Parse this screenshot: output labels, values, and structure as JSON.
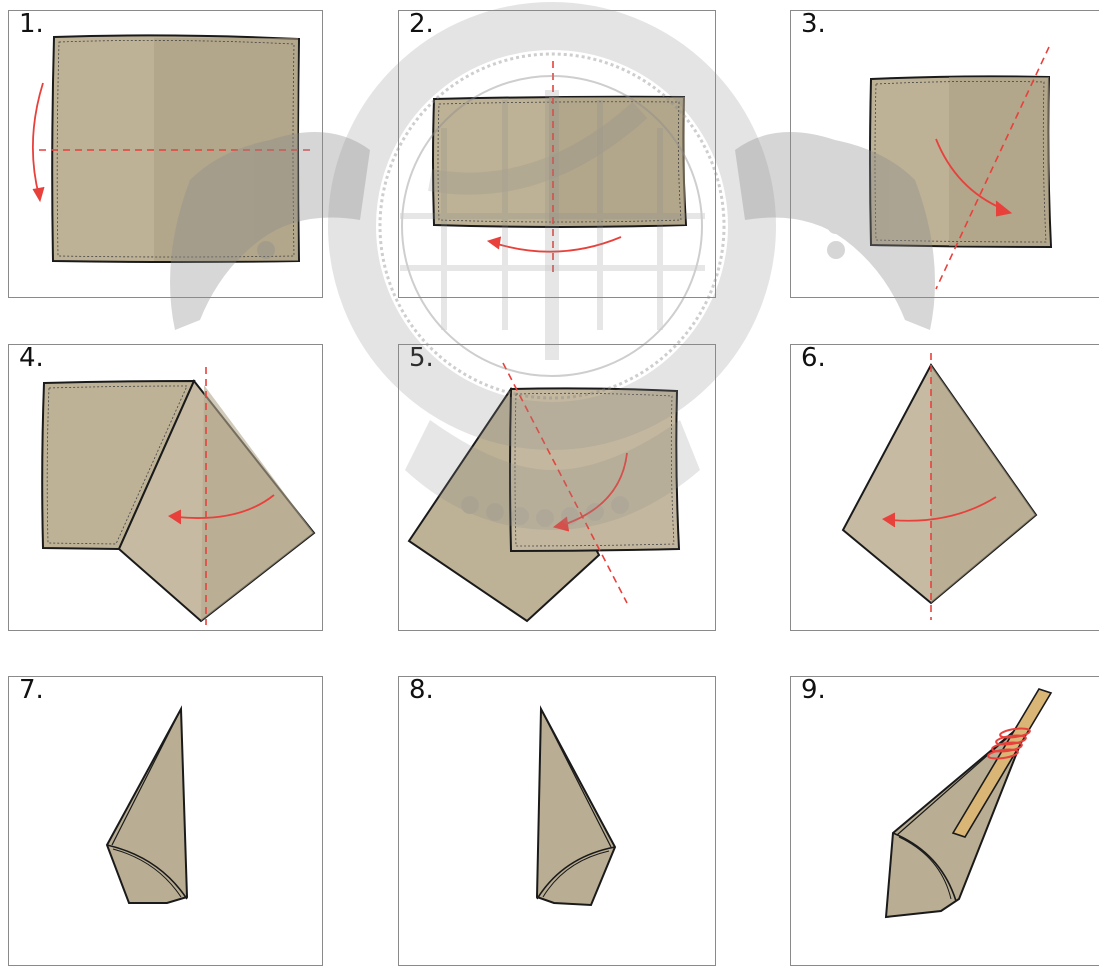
{
  "steps": [
    {
      "label": "1."
    },
    {
      "label": "2."
    },
    {
      "label": "3."
    },
    {
      "label": "4."
    },
    {
      "label": "5."
    },
    {
      "label": "6."
    },
    {
      "label": "7."
    },
    {
      "label": "8."
    },
    {
      "label": "9."
    }
  ],
  "colors": {
    "paper": "#b9ad93",
    "paper_light": "#c9bea6",
    "paper_dark": "#a89c82",
    "outline": "#1a1a1a",
    "fold_line": "#e8413c",
    "arrow": "#e8413c",
    "stick": "#d9b676",
    "thread": "#e8413c",
    "watermark": "#8c8c8c"
  }
}
